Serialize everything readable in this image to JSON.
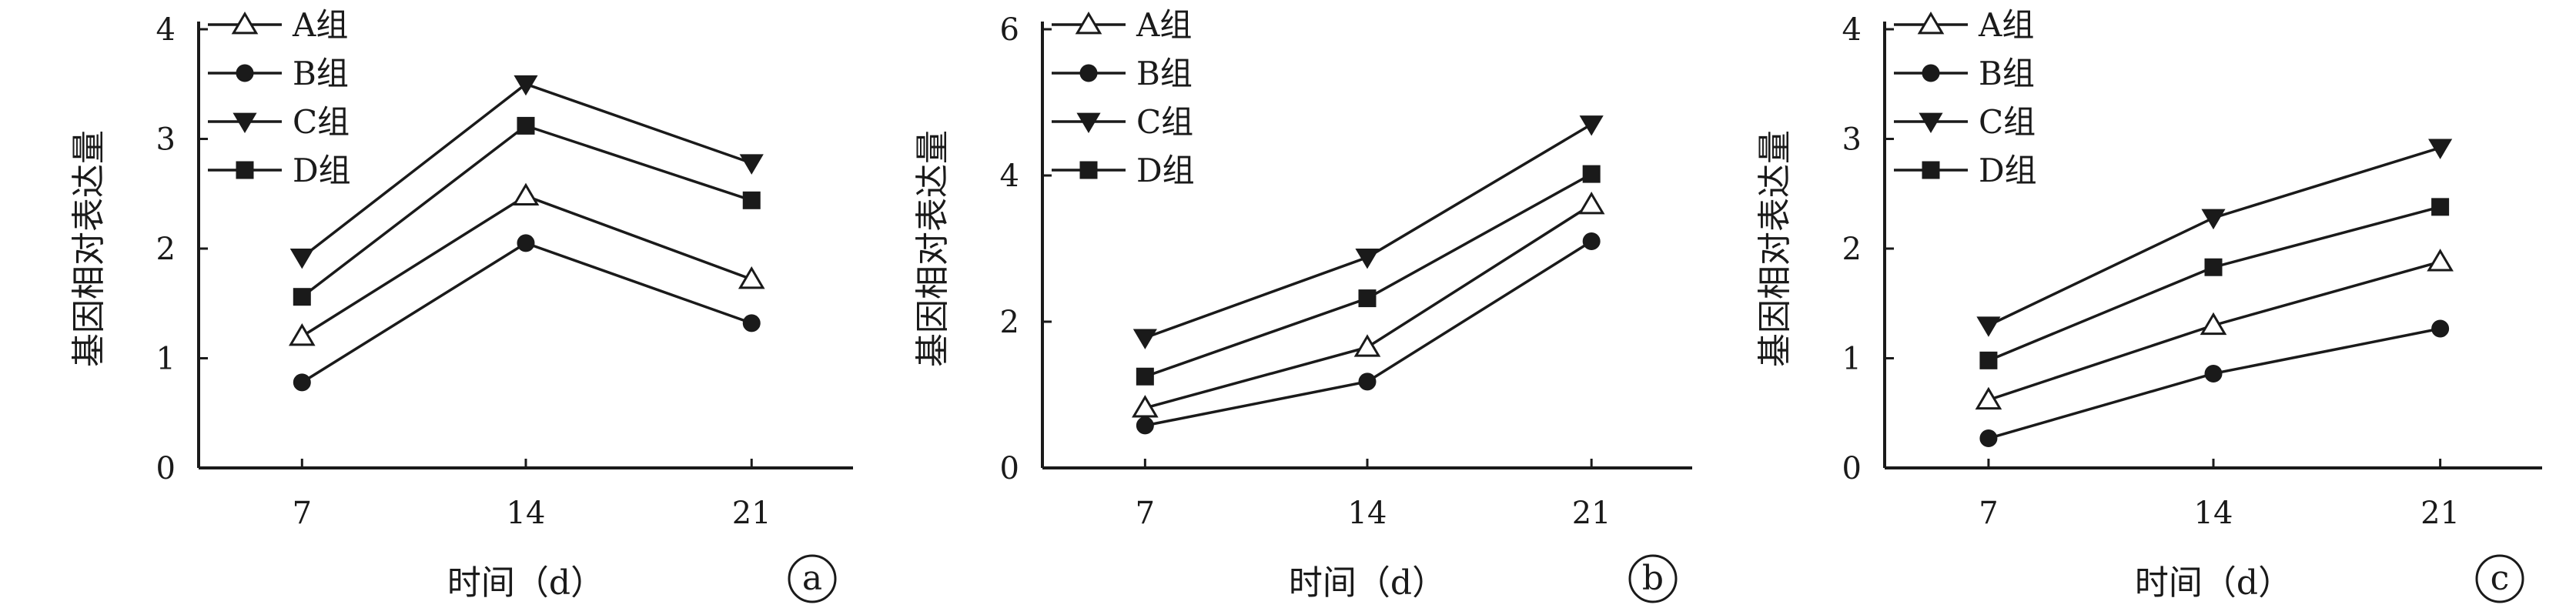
{
  "chart_data": [
    {
      "type": "line",
      "panel_label": "a",
      "x": [
        7,
        14,
        21
      ],
      "xlabel": "时间（d）",
      "ylabel": "基因相对表达量",
      "ylim": [
        0,
        4
      ],
      "yticks": [
        0,
        1,
        2,
        3,
        4
      ],
      "grid": false,
      "legend_position": "top-left",
      "series": [
        {
          "name": "A组",
          "marker": "triangle-up-open",
          "values": [
            1.2,
            2.48,
            1.72
          ]
        },
        {
          "name": "B组",
          "marker": "circle-filled",
          "values": [
            0.78,
            2.05,
            1.32
          ]
        },
        {
          "name": "C组",
          "marker": "triangle-down-filled",
          "values": [
            1.92,
            3.5,
            2.78
          ]
        },
        {
          "name": "D组",
          "marker": "square-filled",
          "values": [
            1.56,
            3.12,
            2.44
          ]
        }
      ]
    },
    {
      "type": "line",
      "panel_label": "b",
      "x": [
        7,
        14,
        21
      ],
      "xlabel": "时间（d）",
      "ylabel": "基因相对表达量",
      "ylim": [
        0,
        6
      ],
      "yticks": [
        0,
        2,
        4,
        6
      ],
      "grid": false,
      "legend_position": "top-left",
      "series": [
        {
          "name": "A组",
          "marker": "triangle-up-open",
          "values": [
            0.82,
            1.65,
            3.6
          ]
        },
        {
          "name": "B组",
          "marker": "circle-filled",
          "values": [
            0.58,
            1.18,
            3.1
          ]
        },
        {
          "name": "C组",
          "marker": "triangle-down-filled",
          "values": [
            1.78,
            2.88,
            4.7
          ]
        },
        {
          "name": "D组",
          "marker": "square-filled",
          "values": [
            1.25,
            2.32,
            4.02
          ]
        }
      ]
    },
    {
      "type": "line",
      "panel_label": "c",
      "x": [
        7,
        14,
        21
      ],
      "xlabel": "时间（d）",
      "ylabel": "基因相对表达量",
      "ylim": [
        0,
        4
      ],
      "yticks": [
        0,
        1,
        2,
        3,
        4
      ],
      "grid": false,
      "legend_position": "top-left",
      "series": [
        {
          "name": "A组",
          "marker": "triangle-up-open",
          "values": [
            0.62,
            1.3,
            1.88
          ]
        },
        {
          "name": "B组",
          "marker": "circle-filled",
          "values": [
            0.27,
            0.86,
            1.27
          ]
        },
        {
          "name": "C组",
          "marker": "triangle-down-filled",
          "values": [
            1.3,
            2.28,
            2.92
          ]
        },
        {
          "name": "D组",
          "marker": "square-filled",
          "values": [
            0.98,
            1.83,
            2.38
          ]
        }
      ]
    }
  ]
}
